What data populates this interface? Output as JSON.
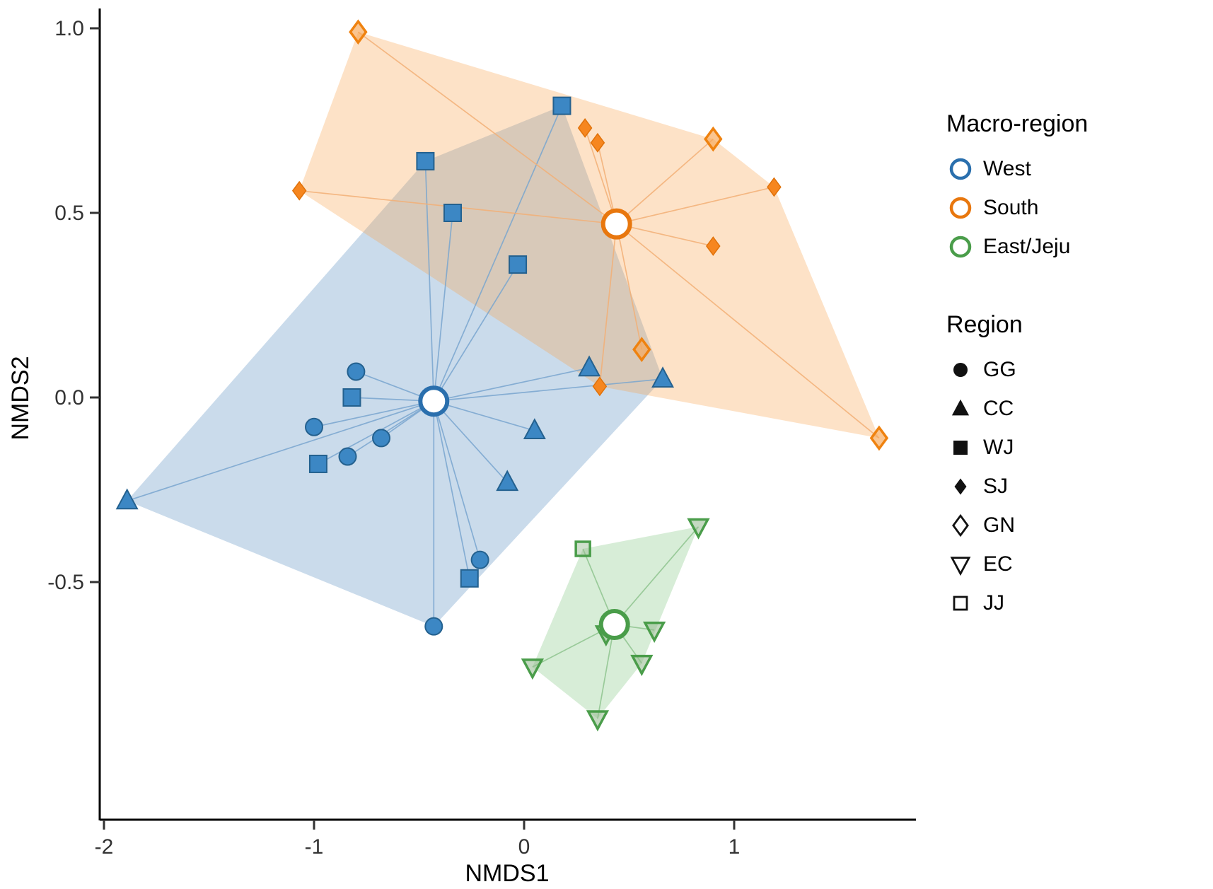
{
  "chart_data": {
    "type": "scatter",
    "title": "",
    "xlabel": "NMDS1",
    "ylabel": "NMDS2",
    "xlim": [
      -2.02,
      1.87
    ],
    "ylim": [
      -1.14,
      1.05
    ],
    "grid": false,
    "legend_position": "right",
    "x_ticks": [
      "-2",
      "-1",
      "0",
      "1"
    ],
    "x_tick_values": [
      -2,
      -1,
      0,
      1
    ],
    "y_ticks": [
      "-0.5",
      "0.0",
      "0.5",
      "1.0"
    ],
    "y_tick_values": [
      -0.5,
      0,
      0.5,
      1
    ],
    "groups": [
      {
        "name": "West",
        "centroid": [
          -0.43,
          -0.01
        ],
        "hull": [
          [
            -1.89,
            -0.28
          ],
          [
            -0.47,
            0.64
          ],
          [
            0.18,
            0.79
          ],
          [
            0.66,
            0.05
          ],
          [
            -0.43,
            -0.62
          ]
        ],
        "colors": {
          "stroke": "#2a6fad",
          "hull": "rgba(90,143,192,0.32)",
          "line": "#7aa6cf"
        },
        "points": [
          {
            "region": "WJ",
            "x": 0.18,
            "y": 0.79
          },
          {
            "region": "WJ",
            "x": -0.47,
            "y": 0.64
          },
          {
            "region": "WJ",
            "x": -0.34,
            "y": 0.5
          },
          {
            "region": "WJ",
            "x": -0.03,
            "y": 0.36
          },
          {
            "region": "WJ",
            "x": -0.82,
            "y": 0.0
          },
          {
            "region": "WJ",
            "x": -0.98,
            "y": -0.18
          },
          {
            "region": "WJ",
            "x": -0.26,
            "y": -0.49
          },
          {
            "region": "GG",
            "x": -0.8,
            "y": 0.07
          },
          {
            "region": "GG",
            "x": -1.0,
            "y": -0.08
          },
          {
            "region": "GG",
            "x": -0.68,
            "y": -0.11
          },
          {
            "region": "GG",
            "x": -0.84,
            "y": -0.16
          },
          {
            "region": "GG",
            "x": -0.21,
            "y": -0.44
          },
          {
            "region": "GG",
            "x": -0.43,
            "y": -0.62
          },
          {
            "region": "CC",
            "x": -1.89,
            "y": -0.28
          },
          {
            "region": "CC",
            "x": 0.31,
            "y": 0.08
          },
          {
            "region": "CC",
            "x": 0.66,
            "y": 0.05
          },
          {
            "region": "CC",
            "x": 0.05,
            "y": -0.09
          },
          {
            "region": "CC",
            "x": -0.08,
            "y": -0.23
          }
        ]
      },
      {
        "name": "South",
        "centroid": [
          0.44,
          0.47
        ],
        "hull": [
          [
            -1.07,
            0.56
          ],
          [
            -0.79,
            0.99
          ],
          [
            0.9,
            0.7
          ],
          [
            1.19,
            0.57
          ],
          [
            1.69,
            -0.11
          ],
          [
            0.36,
            0.03
          ]
        ],
        "colors": {
          "stroke": "#e8770e",
          "hull": "rgba(248,160,74,0.31)",
          "line": "#f3b077"
        },
        "points": [
          {
            "region": "SJ",
            "x": -1.07,
            "y": 0.56
          },
          {
            "region": "SJ",
            "x": 0.29,
            "y": 0.73
          },
          {
            "region": "SJ",
            "x": 0.35,
            "y": 0.69
          },
          {
            "region": "SJ",
            "x": 1.19,
            "y": 0.57
          },
          {
            "region": "SJ",
            "x": 0.9,
            "y": 0.41
          },
          {
            "region": "SJ",
            "x": 0.36,
            "y": 0.03
          },
          {
            "region": "GN",
            "x": -0.79,
            "y": 0.99
          },
          {
            "region": "GN",
            "x": 0.9,
            "y": 0.7
          },
          {
            "region": "GN",
            "x": 0.56,
            "y": 0.13
          },
          {
            "region": "GN",
            "x": 1.69,
            "y": -0.11
          }
        ]
      },
      {
        "name": "East/Jeju",
        "centroid": [
          0.43,
          -0.615
        ],
        "hull": [
          [
            0.28,
            -0.41
          ],
          [
            0.83,
            -0.35
          ],
          [
            0.56,
            -0.72
          ],
          [
            0.35,
            -0.87
          ],
          [
            0.04,
            -0.73
          ]
        ],
        "colors": {
          "stroke": "#4a9d4a",
          "hull": "rgba(124,196,124,0.30)",
          "line": "#8fc48f"
        },
        "points": [
          {
            "region": "EC",
            "x": 0.83,
            "y": -0.35
          },
          {
            "region": "EC",
            "x": 0.62,
            "y": -0.63
          },
          {
            "region": "EC",
            "x": 0.56,
            "y": -0.72
          },
          {
            "region": "EC",
            "x": 0.04,
            "y": -0.73
          },
          {
            "region": "EC",
            "x": 0.35,
            "y": -0.87
          },
          {
            "region": "EC",
            "x": 0.39,
            "y": -0.64
          },
          {
            "region": "JJ",
            "x": 0.28,
            "y": -0.41
          }
        ]
      }
    ],
    "region_styles": {
      "GG": {
        "shape": "circle",
        "size": 12,
        "fill": "#3c87c4",
        "stroke": "#24618f",
        "sw": 2
      },
      "CC": {
        "shape": "triangle-up",
        "size": 13,
        "fill": "#3c87c4",
        "stroke": "#24618f",
        "sw": 2
      },
      "WJ": {
        "shape": "square",
        "size": 12,
        "fill": "#3c87c4",
        "stroke": "#24618f",
        "sw": 2
      },
      "SJ": {
        "shape": "diamond",
        "size": 11,
        "fill": "#f6861f",
        "stroke": "#e0720a",
        "sw": 1.5
      },
      "GN": {
        "shape": "diamond",
        "size": 13,
        "fill": "rgba(247,166,84,0.65)",
        "stroke": "#ef820f",
        "sw": 3.5
      },
      "EC": {
        "shape": "triangle-down",
        "size": 12,
        "fill": "rgba(148,186,142,0.55)",
        "stroke": "#4a9d4a",
        "sw": 3.5
      },
      "JJ": {
        "shape": "square",
        "size": 10,
        "fill": "rgba(148,186,142,0.45)",
        "stroke": "#4a9d4a",
        "sw": 3.5
      }
    },
    "centroid_style": {
      "radius": 19,
      "stroke_width": 6,
      "fill": "#ffffff"
    },
    "legend": {
      "macro_title": "Macro-region",
      "macro_items": [
        {
          "label": "West",
          "color": "#2a6fad"
        },
        {
          "label": "South",
          "color": "#e8770e"
        },
        {
          "label": "East/Jeju",
          "color": "#4a9d4a"
        }
      ],
      "region_title": "Region",
      "region_items": [
        {
          "label": "GG",
          "shape": "circle",
          "variant": "filled",
          "size": 10
        },
        {
          "label": "CC",
          "shape": "triangle-up",
          "variant": "filled",
          "size": 11
        },
        {
          "label": "WJ",
          "shape": "square",
          "variant": "filled",
          "size": 10
        },
        {
          "label": "SJ",
          "shape": "diamond",
          "variant": "filled",
          "size": 10
        },
        {
          "label": "GN",
          "shape": "diamond",
          "variant": "open",
          "size": 12
        },
        {
          "label": "EC",
          "shape": "triangle-down",
          "variant": "open",
          "size": 11
        },
        {
          "label": "JJ",
          "shape": "square",
          "variant": "open",
          "size": 9
        }
      ],
      "icon_color": "#111111"
    },
    "axis": {
      "line_color": "#000000",
      "tick_color": "#333333",
      "tick_label_color": "#333333"
    }
  }
}
